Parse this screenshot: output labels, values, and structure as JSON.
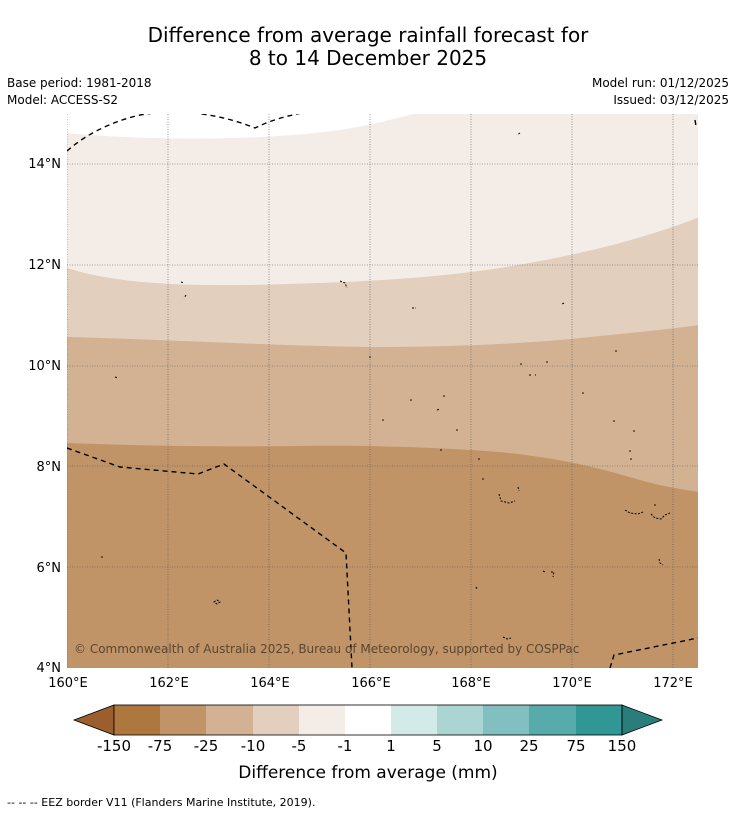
{
  "title": {
    "line1": "Difference from average rainfall forecast for",
    "line2": "8 to 14 December 2025"
  },
  "meta": {
    "base_period": "Base period: 1981-2018",
    "model": "Model: ACCESS-S2",
    "model_run": "Model run: 01/12/2025",
    "issued": "Issued: 03/12/2025"
  },
  "map": {
    "y_ticks": [
      "14°N",
      "12°N",
      "10°N",
      "8°N",
      "6°N",
      "4°N"
    ],
    "x_ticks": [
      "160°E",
      "162°E",
      "164°E",
      "166°E",
      "168°E",
      "170°E",
      "172°E"
    ],
    "copyright": "© Commonwealth of Australia 2025, Bureau of Meteorology, supported by COSPPac"
  },
  "colorbar": {
    "labels": [
      "-150",
      "-75",
      "-25",
      "-10",
      "-5",
      "-1",
      "1",
      "5",
      "10",
      "25",
      "75",
      "150"
    ],
    "colors": [
      "#9b5e2c",
      "#ae773d",
      "#c19468",
      "#d3b293",
      "#e2cfbd",
      "#f4ede7",
      "#ffffff",
      "#d3ebe8",
      "#aad5d2",
      "#81bfc0",
      "#57abab",
      "#309795",
      "#2b7d7c"
    ],
    "label": "Difference from average (mm)"
  },
  "footer": "--  --  -- EEZ border V11 (Flanders Marine Institute, 2019)."
}
